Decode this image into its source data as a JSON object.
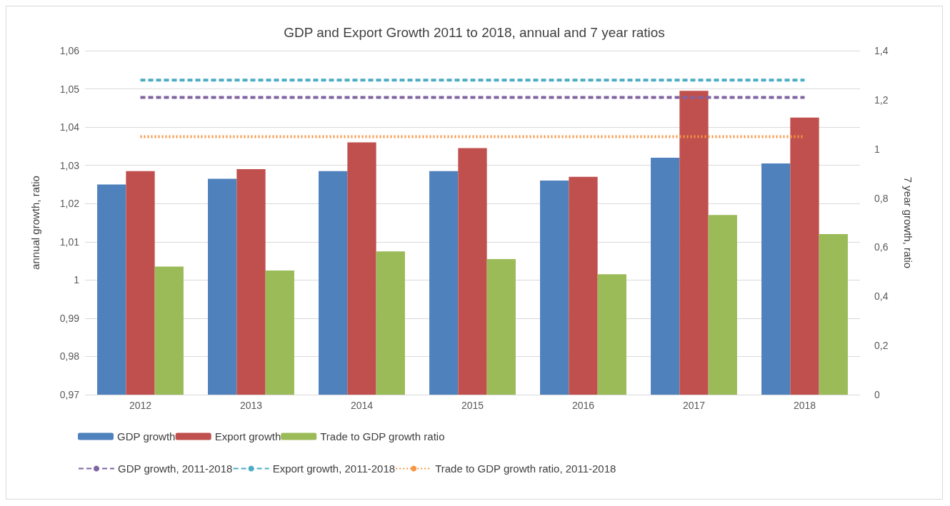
{
  "chart_data": {
    "type": "bar",
    "title": "GDP and Export Growth 2011 to 2018, annual and 7 year ratios",
    "ylabel": "annual growth, ratio",
    "y2label": "7 year growth, ratio",
    "categories": [
      "2012",
      "2013",
      "2014",
      "2015",
      "2016",
      "2017",
      "2018"
    ],
    "series": [
      {
        "name": "GDP growth",
        "color": "#4f81bd",
        "values": [
          1.025,
          1.0265,
          1.0285,
          1.0285,
          1.026,
          1.032,
          1.0305
        ]
      },
      {
        "name": "Export growth",
        "color": "#c0504d",
        "values": [
          1.0285,
          1.029,
          1.036,
          1.0345,
          1.027,
          1.0495,
          1.0425
        ]
      },
      {
        "name": "Trade to GDP growth ratio",
        "color": "#9bbb59",
        "values": [
          1.0035,
          1.0025,
          1.0075,
          1.0055,
          1.0015,
          1.017,
          1.012
        ]
      },
      {
        "name": "GDP growth, 2011-2018",
        "type": "line",
        "axis": "y2",
        "line_style": "dashed",
        "color": "#8064a2",
        "values": [
          1.21,
          1.21,
          1.21,
          1.21,
          1.21,
          1.21,
          1.21
        ]
      },
      {
        "name": "Export growth, 2011-2018",
        "type": "line",
        "axis": "y2",
        "line_style": "dashed",
        "color": "#4bacc6",
        "values": [
          1.28,
          1.28,
          1.28,
          1.28,
          1.28,
          1.28,
          1.28
        ]
      },
      {
        "name": "Trade to GDP growth ratio, 2011-2018",
        "type": "line",
        "axis": "y2",
        "line_style": "dotted",
        "color": "#f79646",
        "values": [
          1.05,
          1.05,
          1.05,
          1.05,
          1.05,
          1.05,
          1.05
        ]
      }
    ],
    "ylim": [
      0.97,
      1.06
    ],
    "yticks": [
      {
        "value": 0.97,
        "label": "0,97"
      },
      {
        "value": 0.98,
        "label": "0,98"
      },
      {
        "value": 0.99,
        "label": "0,99"
      },
      1,
      {
        "value": 1.01,
        "label": "1,01"
      },
      {
        "value": 1.02,
        "label": "1,02"
      },
      {
        "value": 1.03,
        "label": "1,03"
      },
      {
        "value": 1.04,
        "label": "1,04"
      },
      {
        "value": 1.05,
        "label": "1,05"
      },
      {
        "value": 1.06,
        "label": "1,06"
      }
    ],
    "y2lim": [
      0,
      1.4
    ],
    "y2ticks": [
      0,
      {
        "value": 0.2,
        "label": "0,2"
      },
      {
        "value": 0.4,
        "label": "0,4"
      },
      {
        "value": 0.6,
        "label": "0,6"
      },
      {
        "value": 0.8,
        "label": "0,8"
      },
      1,
      {
        "value": 1.2,
        "label": "1,2"
      },
      {
        "value": 1.4,
        "label": "1,4"
      }
    ],
    "grid": "y",
    "legend": "bottom",
    "marker": "none"
  }
}
